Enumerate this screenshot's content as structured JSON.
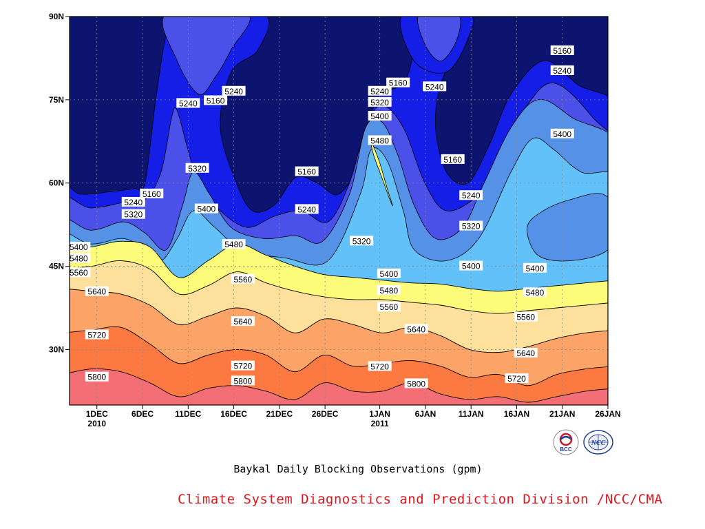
{
  "chart_data": {
    "type": "contour",
    "caption": "Baykal Daily Blocking Observations (gpm)",
    "x_range": [
      "2010-11-28",
      "2011-01-26"
    ],
    "y_range": [
      20,
      90
    ],
    "x_ticks": [
      {
        "date": "2010-12-01",
        "label": "1DEC",
        "sublabel": "2010"
      },
      {
        "date": "2010-12-06",
        "label": "6DEC",
        "sublabel": ""
      },
      {
        "date": "2010-12-11",
        "label": "11DEC",
        "sublabel": ""
      },
      {
        "date": "2010-12-16",
        "label": "16DEC",
        "sublabel": ""
      },
      {
        "date": "2010-12-21",
        "label": "21DEC",
        "sublabel": ""
      },
      {
        "date": "2010-12-26",
        "label": "26DEC",
        "sublabel": ""
      },
      {
        "date": "2011-01-01",
        "label": "1JAN",
        "sublabel": "2011"
      },
      {
        "date": "2011-01-06",
        "label": "6JAN",
        "sublabel": ""
      },
      {
        "date": "2011-01-11",
        "label": "11JAN",
        "sublabel": ""
      },
      {
        "date": "2011-01-16",
        "label": "16JAN",
        "sublabel": ""
      },
      {
        "date": "2011-01-21",
        "label": "21JAN",
        "sublabel": ""
      },
      {
        "date": "2011-01-26",
        "label": "26JAN",
        "sublabel": ""
      }
    ],
    "y_ticks": [
      {
        "value": 30,
        "label": "30N"
      },
      {
        "value": 45,
        "label": "45N"
      },
      {
        "value": 60,
        "label": "60N"
      },
      {
        "value": 75,
        "label": "75N"
      },
      {
        "value": 90,
        "label": "90N"
      }
    ],
    "grid": true,
    "levels": [
      5160,
      5240,
      5320,
      5400,
      5480,
      5560,
      5640,
      5720,
      5800
    ],
    "fill_colors": {
      "below_5160": "#0c1470",
      "5160_5240": "#141ee6",
      "5240_5320": "#4a50e8",
      "5320_5400": "#5591e6",
      "5400_5480": "#63c1fa",
      "5480_5560": "#fcfc7a",
      "5560_5640": "#fde09b",
      "5640_5720": "#fca467",
      "5720_5800": "#fc7a41",
      "above_5800": "#f46e76"
    },
    "contour_bands": [
      {
        "level": 5480,
        "lat": [
          48.2,
          48.5,
          49.5,
          48.5,
          43.0,
          46.0,
          49.0,
          47.0,
          45.0,
          43.5,
          43.0,
          42.5,
          42.0,
          41.8,
          41.0,
          40.5,
          41.0,
          41.5,
          42.0,
          42.5
        ]
      },
      {
        "level": 5560,
        "lat": [
          44.5,
          45.0,
          46.0,
          44.5,
          40.0,
          41.5,
          44.0,
          42.0,
          40.5,
          39.5,
          39.0,
          39.0,
          38.5,
          38.0,
          37.0,
          36.5,
          37.0,
          37.5,
          38.0,
          38.5
        ]
      },
      {
        "level": 5640,
        "lat": [
          41.0,
          40.5,
          40.0,
          38.0,
          34.5,
          36.0,
          37.5,
          36.0,
          33.0,
          35.5,
          34.5,
          33.0,
          34.0,
          32.5,
          30.0,
          29.5,
          30.5,
          32.0,
          33.0,
          33.5
        ]
      },
      {
        "level": 5720,
        "lat": [
          33.0,
          33.5,
          34.0,
          31.0,
          27.5,
          29.0,
          30.0,
          29.0,
          26.0,
          29.0,
          27.0,
          27.5,
          28.0,
          27.0,
          25.0,
          25.5,
          23.5,
          25.5,
          26.5,
          27.0
        ]
      },
      {
        "level": 5800,
        "lat": [
          25.5,
          26.5,
          26.0,
          24.0,
          21.5,
          23.0,
          23.5,
          22.5,
          21.0,
          24.0,
          22.5,
          22.5,
          24.0,
          22.0,
          21.0,
          21.5,
          20.5,
          21.5,
          22.5,
          23.0
        ]
      }
    ],
    "contour_labels": [
      {
        "text": "5800",
        "date": "2010-12-01",
        "lat": 25.0
      },
      {
        "text": "5720",
        "date": "2010-12-01",
        "lat": 32.6
      },
      {
        "text": "5640",
        "date": "2010-12-01",
        "lat": 40.4
      },
      {
        "text": "5560",
        "date": "2010-11-29",
        "lat": 43.8
      },
      {
        "text": "5480",
        "date": "2010-11-29",
        "lat": 46.4
      },
      {
        "text": "5400",
        "date": "2010-11-29",
        "lat": 48.4
      },
      {
        "text": "5320",
        "date": "2010-12-05",
        "lat": 54.3
      },
      {
        "text": "5240",
        "date": "2010-12-05",
        "lat": 56.5
      },
      {
        "text": "5160",
        "date": "2010-12-07",
        "lat": 58.0
      },
      {
        "text": "5240",
        "date": "2010-12-11",
        "lat": 74.3
      },
      {
        "text": "5160",
        "date": "2010-12-14",
        "lat": 74.8
      },
      {
        "text": "5240",
        "date": "2010-12-16",
        "lat": 76.5
      },
      {
        "text": "5320",
        "date": "2010-12-12",
        "lat": 62.6
      },
      {
        "text": "5400",
        "date": "2010-12-13",
        "lat": 55.3
      },
      {
        "text": "5480",
        "date": "2010-12-16",
        "lat": 48.9
      },
      {
        "text": "5560",
        "date": "2010-12-17",
        "lat": 42.6
      },
      {
        "text": "5640",
        "date": "2010-12-17",
        "lat": 35.0
      },
      {
        "text": "5720",
        "date": "2010-12-17",
        "lat": 27.0
      },
      {
        "text": "5800",
        "date": "2010-12-17",
        "lat": 24.3
      },
      {
        "text": "5160",
        "date": "2010-12-24",
        "lat": 62.0
      },
      {
        "text": "5240",
        "date": "2010-12-24",
        "lat": 55.2
      },
      {
        "text": "5320",
        "date": "2010-12-30",
        "lat": 49.5
      },
      {
        "text": "5240",
        "date": "2011-01-01",
        "lat": 76.5
      },
      {
        "text": "5160",
        "date": "2011-01-03",
        "lat": 78.0
      },
      {
        "text": "5320",
        "date": "2011-01-01",
        "lat": 74.5
      },
      {
        "text": "5400",
        "date": "2011-01-01",
        "lat": 72.0
      },
      {
        "text": "5480",
        "date": "2011-01-01",
        "lat": 67.6
      },
      {
        "text": "5240",
        "date": "2011-01-07",
        "lat": 77.3
      },
      {
        "text": "5160",
        "date": "2011-01-09",
        "lat": 64.2
      },
      {
        "text": "5240",
        "date": "2011-01-11",
        "lat": 57.7
      },
      {
        "text": "5320",
        "date": "2011-01-11",
        "lat": 52.2
      },
      {
        "text": "5400",
        "date": "2011-01-11",
        "lat": 45.0
      },
      {
        "text": "5400",
        "date": "2011-01-02",
        "lat": 43.6
      },
      {
        "text": "5480",
        "date": "2011-01-02",
        "lat": 40.6
      },
      {
        "text": "5560",
        "date": "2011-01-02",
        "lat": 37.6
      },
      {
        "text": "5640",
        "date": "2011-01-05",
        "lat": 33.6
      },
      {
        "text": "5720",
        "date": "2011-01-01",
        "lat": 26.9
      },
      {
        "text": "5800",
        "date": "2011-01-05",
        "lat": 23.8
      },
      {
        "text": "5160",
        "date": "2011-01-21",
        "lat": 83.8
      },
      {
        "text": "5240",
        "date": "2011-01-21",
        "lat": 80.2
      },
      {
        "text": "5400",
        "date": "2011-01-21",
        "lat": 68.8
      },
      {
        "text": "5400",
        "date": "2011-01-18",
        "lat": 44.6
      },
      {
        "text": "5480",
        "date": "2011-01-18",
        "lat": 40.2
      },
      {
        "text": "5560",
        "date": "2011-01-17",
        "lat": 35.8
      },
      {
        "text": "5640",
        "date": "2011-01-17",
        "lat": 29.3
      },
      {
        "text": "5720",
        "date": "2011-01-16",
        "lat": 24.7
      }
    ]
  },
  "footer": {
    "credit": "Climate System Diagnostics and Prediction Division /NCC/CMA",
    "logo_bcc": "BCC",
    "logo_ncc": "NCC"
  }
}
